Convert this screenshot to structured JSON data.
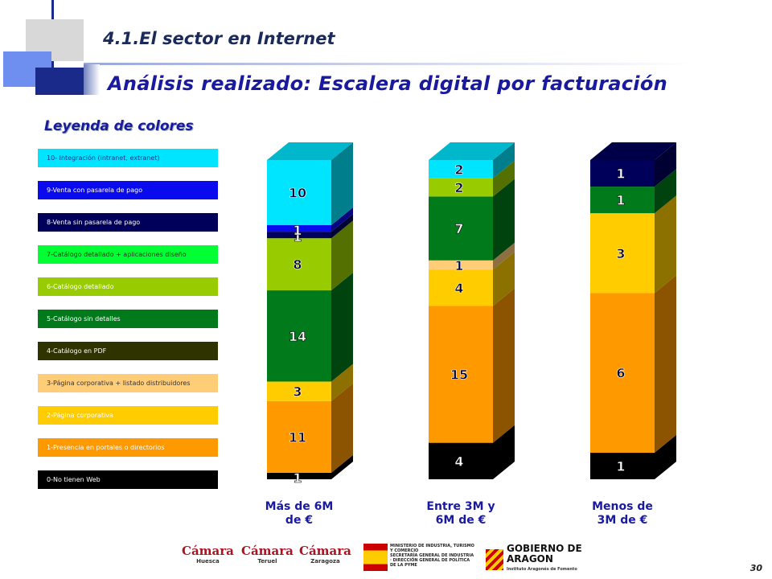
{
  "header": {
    "section_title": "4.1.El sector en Internet",
    "main_title": "Análisis realizado: Escalera digital por facturación"
  },
  "legend": {
    "title": "Leyenda de colores",
    "items": [
      {
        "label": "10- Integración (intranet, extranet)",
        "color": "#00e5ff",
        "text_color": "#1a3a8a"
      },
      {
        "label": "9-Venta con pasarela de pago",
        "color": "#0a0aee",
        "text_color": "#ffffff"
      },
      {
        "label": "8-Venta sin pasarela de pago",
        "color": "#00005a",
        "text_color": "#ffffff"
      },
      {
        "label": "7-Catálogo detallado + aplicaciones diseño",
        "color": "#00ff33",
        "text_color": "#1a3a1a"
      },
      {
        "label": "6-Catálogo detallado",
        "color": "#99cc00",
        "text_color": "#ffffff"
      },
      {
        "label": "5-Catálogo sin detalles",
        "color": "#007a1a",
        "text_color": "#ffffff"
      },
      {
        "label": "4-Catálogo en PDF",
        "color": "#2e3300",
        "text_color": "#ffffff"
      },
      {
        "label": "3-Página corporativa + listado distribuidores",
        "color": "#ffcc77",
        "text_color": "#333333"
      },
      {
        "label": "2-Página corporativa",
        "color": "#ffcc00",
        "text_color": "#ffffff"
      },
      {
        "label": "1-Presencia en portales o directorios",
        "color": "#ff9900",
        "text_color": "#ffffff"
      },
      {
        "label": "0-No tienen Web",
        "color": "#000000",
        "text_color": "#ffffff"
      }
    ]
  },
  "chart_data": {
    "type": "bar",
    "stacked": true,
    "categories": [
      "Más de 6M de €",
      "Entre 3M y 6M de €",
      "Menos de 3M de €"
    ],
    "category_lines": [
      [
        "Más de 6M",
        "de €"
      ],
      [
        "Entre 3M y",
        "6M de €"
      ],
      [
        "Menos de",
        "3M de €"
      ]
    ],
    "series": [
      {
        "name": "0-No tienen Web",
        "color": "#000000",
        "values": [
          1,
          4,
          1
        ]
      },
      {
        "name": "1-Presencia en portales o directorios",
        "color": "#ff9900",
        "values": [
          11,
          15,
          6
        ]
      },
      {
        "name": "2-Página corporativa",
        "color": "#ffcc00",
        "values": [
          3,
          4,
          3
        ]
      },
      {
        "name": "3-Página corporativa + listado distribuidores",
        "color": "#ffcc77",
        "values": [
          0,
          1,
          0
        ]
      },
      {
        "name": "5-Catálogo sin detalles",
        "color": "#007a1a",
        "values": [
          14,
          7,
          1
        ]
      },
      {
        "name": "6-Catálogo detallado",
        "color": "#99cc00",
        "values": [
          8,
          2,
          0
        ]
      },
      {
        "name": "8-Venta sin pasarela de pago",
        "color": "#00005a",
        "values": [
          1,
          0,
          1
        ]
      },
      {
        "name": "9-Venta con pasarela de pago",
        "color": "#0a0aee",
        "values": [
          1,
          0,
          0
        ]
      },
      {
        "name": "10- Integración (intranet, extranet)",
        "color": "#00e5ff",
        "values": [
          10,
          2,
          0
        ]
      }
    ],
    "legend_position": "left",
    "grid": false
  },
  "footer": {
    "page_number": "30",
    "logos": [
      {
        "name": "Cámara",
        "sub": "Huesca"
      },
      {
        "name": "Cámara",
        "sub": "Teruel"
      },
      {
        "name": "Cámara",
        "sub": "Zaragoza"
      },
      {
        "name": "MINISTERIO DE INDUSTRIA, TURISMO Y COMERCIO",
        "sub": "SECRETARÍA GENERAL DE INDUSTRIA · DIRECCIÓN GENERAL DE POLÍTICA DE LA PYME"
      },
      {
        "name": "GOBIERNO DE ARAGON",
        "sub": "Instituto Aragonés de Fomento"
      }
    ]
  }
}
